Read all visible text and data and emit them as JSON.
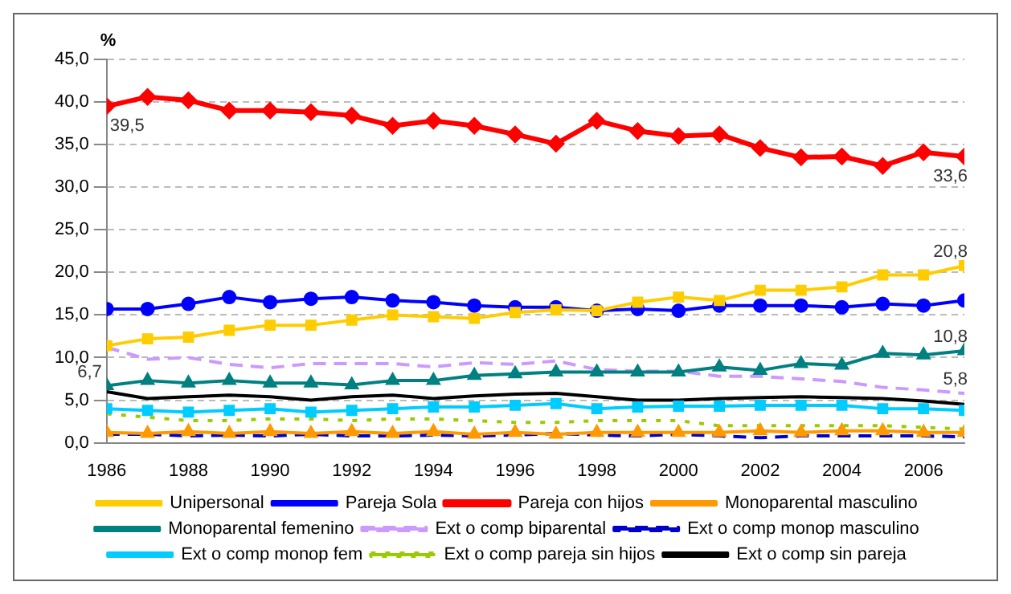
{
  "chart_data": {
    "type": "line",
    "ylabel": "%",
    "x": [
      1986,
      1987,
      1988,
      1989,
      1990,
      1991,
      1992,
      1993,
      1994,
      1995,
      1996,
      1997,
      1998,
      1999,
      2000,
      2001,
      2002,
      2003,
      2004,
      2005,
      2006,
      2007
    ],
    "xlim": [
      1986,
      2007
    ],
    "xticks": [
      1986,
      1988,
      1990,
      1992,
      1994,
      1996,
      1998,
      2000,
      2002,
      2004,
      2006
    ],
    "ylim": [
      0,
      45
    ],
    "yticks": [
      {
        "value": 0,
        "label": "0,0"
      },
      {
        "value": 5,
        "label": "5,0"
      },
      {
        "value": 10,
        "label": "10,0"
      },
      {
        "value": 15,
        "label": "15,0"
      },
      {
        "value": 20,
        "label": "20,0"
      },
      {
        "value": 25,
        "label": "25,0"
      },
      {
        "value": 30,
        "label": "30,0"
      },
      {
        "value": 35,
        "label": "35,0"
      },
      {
        "value": 40,
        "label": "40,0"
      },
      {
        "value": 45,
        "label": "45,0"
      }
    ],
    "grid": "y",
    "legend": "bottom",
    "series": [
      {
        "name": "Unipersonal",
        "color": "#ffcc00",
        "marker": "square",
        "line_style": "solid",
        "values": [
          11.4,
          12.2,
          12.4,
          13.2,
          13.8,
          13.8,
          14.4,
          15.0,
          14.8,
          14.6,
          15.3,
          15.6,
          15.5,
          16.5,
          17.1,
          16.7,
          17.9,
          17.9,
          18.3,
          19.7,
          19.7,
          20.8
        ],
        "value_labels": [
          null,
          null,
          null,
          null,
          null,
          null,
          null,
          null,
          null,
          null,
          null,
          null,
          null,
          null,
          null,
          null,
          null,
          null,
          null,
          null,
          null,
          "20,8"
        ]
      },
      {
        "name": "Pareja Sola",
        "color": "#0000ff",
        "marker": "circle",
        "line_style": "solid",
        "values": [
          15.7,
          15.7,
          16.3,
          17.1,
          16.5,
          16.9,
          17.1,
          16.7,
          16.5,
          16.1,
          15.9,
          15.9,
          15.5,
          15.7,
          15.5,
          16.1,
          16.1,
          16.1,
          15.9,
          16.3,
          16.1,
          16.7
        ]
      },
      {
        "name": "Pareja con hijos",
        "color": "#ff0000",
        "marker": "diamond",
        "line_style": "solid",
        "values": [
          39.5,
          40.6,
          40.2,
          39.0,
          39.0,
          38.8,
          38.4,
          37.2,
          37.8,
          37.2,
          36.2,
          35.1,
          37.8,
          36.6,
          36.0,
          36.2,
          34.6,
          33.5,
          33.6,
          32.5,
          34.1,
          33.6
        ],
        "value_labels": [
          "39,5",
          null,
          null,
          null,
          null,
          null,
          null,
          null,
          null,
          null,
          null,
          null,
          null,
          null,
          null,
          null,
          null,
          null,
          null,
          null,
          null,
          "33,6"
        ]
      },
      {
        "name": "Monoparental masculino",
        "color": "#ff9900",
        "marker": "triangle",
        "line_style": "solid",
        "values": [
          1.2,
          1.1,
          1.3,
          1.1,
          1.3,
          1.1,
          1.3,
          1.1,
          1.3,
          1.0,
          1.2,
          1.0,
          1.2,
          1.2,
          1.2,
          1.2,
          1.4,
          1.2,
          1.4,
          1.4,
          1.2,
          1.2
        ]
      },
      {
        "name": "Monoparental femenino",
        "color": "#008080",
        "marker": "triangle",
        "line_style": "solid",
        "values": [
          6.7,
          7.3,
          7.0,
          7.3,
          7.0,
          7.0,
          6.8,
          7.3,
          7.3,
          7.9,
          8.1,
          8.3,
          8.3,
          8.3,
          8.3,
          8.9,
          8.5,
          9.3,
          9.1,
          10.5,
          10.3,
          10.8
        ],
        "value_labels": [
          "6,7",
          null,
          null,
          null,
          null,
          null,
          null,
          null,
          null,
          null,
          null,
          null,
          null,
          null,
          null,
          null,
          null,
          null,
          null,
          null,
          null,
          "10,8"
        ]
      },
      {
        "name": "Ext o comp biparental",
        "color": "#cc99ff",
        "marker": "none",
        "line_style": "dashed",
        "values": [
          11.2,
          9.8,
          10.0,
          9.2,
          8.8,
          9.3,
          9.3,
          9.3,
          8.9,
          9.4,
          9.2,
          9.6,
          8.6,
          8.4,
          8.4,
          7.8,
          7.8,
          7.5,
          7.2,
          6.5,
          6.2,
          5.8
        ],
        "value_labels": [
          null,
          null,
          null,
          null,
          null,
          null,
          null,
          null,
          null,
          null,
          null,
          null,
          null,
          null,
          null,
          null,
          null,
          null,
          null,
          null,
          null,
          "5,8"
        ]
      },
      {
        "name": "Ext o comp monop masculino",
        "color": "#0000cc",
        "marker": "none",
        "line_style": "dashed",
        "values": [
          1.0,
          1.0,
          0.8,
          0.9,
          0.8,
          1.0,
          0.8,
          0.8,
          0.9,
          0.8,
          0.9,
          1.1,
          0.9,
          0.8,
          1.0,
          0.8,
          0.6,
          0.8,
          0.8,
          0.8,
          0.8,
          0.7
        ]
      },
      {
        "name": "Ext o comp monop fem",
        "color": "#00ccff",
        "marker": "square",
        "line_style": "solid",
        "values": [
          4.0,
          3.8,
          3.6,
          3.8,
          4.0,
          3.6,
          3.8,
          4.0,
          4.2,
          4.2,
          4.4,
          4.6,
          4.0,
          4.2,
          4.3,
          4.3,
          4.4,
          4.4,
          4.4,
          4.0,
          4.0,
          3.8
        ]
      },
      {
        "name": "Ext o comp pareja sin hijos",
        "color": "#99cc00",
        "marker": "none",
        "line_style": "dotted",
        "values": [
          3.4,
          3.0,
          2.6,
          2.6,
          2.8,
          2.8,
          2.6,
          2.8,
          2.8,
          2.6,
          2.4,
          2.4,
          2.6,
          2.6,
          2.6,
          2.0,
          2.0,
          2.0,
          2.0,
          2.0,
          1.8,
          1.6
        ]
      },
      {
        "name": "Ext o comp sin pareja",
        "color": "#000000",
        "marker": "none",
        "line_style": "solid",
        "values": [
          6.0,
          5.2,
          5.4,
          5.6,
          5.4,
          5.0,
          5.4,
          5.6,
          5.2,
          5.5,
          5.7,
          5.8,
          5.4,
          5.0,
          5.0,
          5.2,
          5.3,
          5.4,
          5.3,
          5.2,
          4.9,
          4.5
        ]
      }
    ]
  }
}
